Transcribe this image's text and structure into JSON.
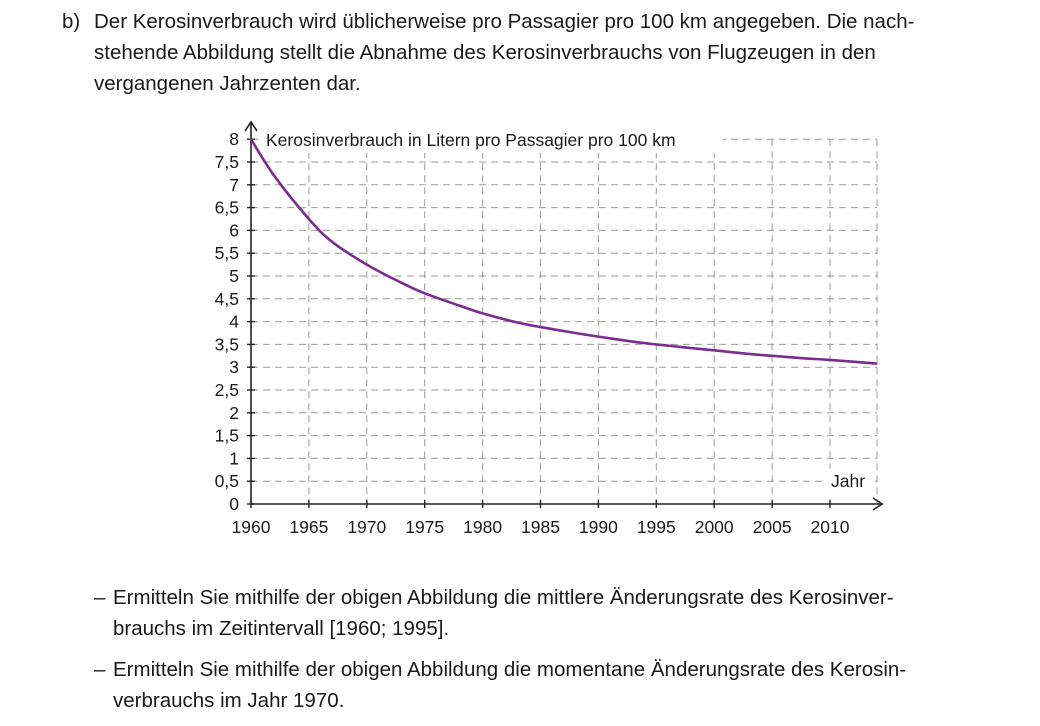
{
  "task_b": {
    "label": "b)",
    "lines": [
      "Der Kerosinverbrauch wird üblicherweise pro Passagier pro 100 km angegeben. Die nach-",
      "stehende Abbildung stellt die Abnahme des Kerosinverbrauchs von Flugzeugen in den",
      "vergangenen Jahrzenten dar."
    ]
  },
  "chart_data": {
    "type": "line",
    "title": "",
    "ylabel": "Kerosinverbrauch in Litern pro Passagier pro 100 km",
    "xlabel": "Jahr",
    "xlim": [
      1960,
      2014
    ],
    "ylim": [
      0,
      8
    ],
    "grid": true,
    "x_ticks": [
      "1960",
      "1965",
      "1970",
      "1975",
      "1980",
      "1985",
      "1990",
      "1995",
      "2000",
      "2005",
      "2010"
    ],
    "y_ticks": [
      "0",
      "0,5",
      "1",
      "1,5",
      "2",
      "2,5",
      "3",
      "3,5",
      "4",
      "4,5",
      "5",
      "5,5",
      "6",
      "6,5",
      "7",
      "7,5",
      "8"
    ],
    "series": [
      {
        "color": "#7b2d8e",
        "x": [
          1960,
          1962,
          1965,
          1967,
          1970,
          1973,
          1975,
          1978,
          1980,
          1983,
          1985,
          1988,
          1990,
          1993,
          1995,
          1998,
          2000,
          2003,
          2005,
          2008,
          2010,
          2014
        ],
        "y": [
          8.0,
          7.2,
          6.25,
          5.75,
          5.25,
          4.85,
          4.62,
          4.35,
          4.18,
          3.98,
          3.88,
          3.75,
          3.67,
          3.56,
          3.5,
          3.42,
          3.37,
          3.29,
          3.25,
          3.19,
          3.16,
          3.08
        ]
      }
    ]
  },
  "tasks": [
    {
      "dash": "–",
      "lines": [
        "Ermitteln Sie mithilfe der obigen Abbildung die mittlere Änderungsrate des Kerosinver-",
        "brauchs im Zeitintervall [1960; 1995]."
      ]
    },
    {
      "dash": "–",
      "lines": [
        "Ermitteln Sie mithilfe der obigen Abbildung die momentane Änderungsrate des Kerosin-",
        "verbrauchs im Jahr 1970."
      ]
    }
  ]
}
